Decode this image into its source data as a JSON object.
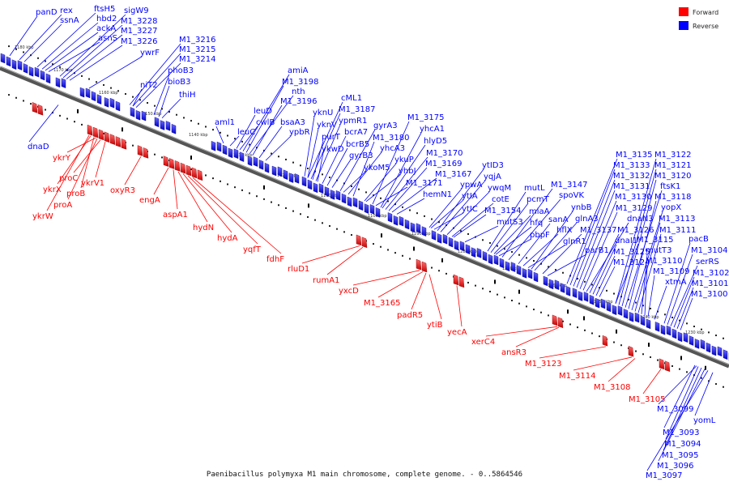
{
  "caption": "Paenibacillus polymyxa M1 main chromosome, complete genome. - 0..5864546",
  "legend": {
    "forward": "Forward",
    "reverse": "Reverse",
    "forward_color": "#ff0000",
    "reverse_color": "#0000ff"
  },
  "colors": {
    "forward": "#ff0000",
    "reverse": "#0000ff",
    "backbone": "#555555"
  },
  "tick_labels": [
    "1180 kbp",
    "1170 kbp",
    "1160 kbp",
    "1150 kbp",
    "1140 kbp",
    "1130 kbp",
    "1120 kbp",
    "1110 kbp",
    "1100 kbp",
    "1290 kbp",
    "1280 kbp",
    "1270 kbp",
    "1260 kbp",
    "1250 kbp",
    "1240 kbp",
    "1230 kbp"
  ],
  "reverse_labels": [
    "panD",
    "rex",
    "ssnA",
    "ftsH5",
    "hbd2",
    "ackA",
    "asnS",
    "sigW9",
    "M1_3228",
    "M1_3227",
    "M1_3226",
    "ywrF",
    "dnaD",
    "M1_3216",
    "M1_3215",
    "M1_3214",
    "niT2",
    "phoB3",
    "bioB3",
    "thiH",
    "amiA",
    "M1_3198",
    "nth",
    "M1_3196",
    "aml1",
    "leuD",
    "cwlB",
    "leuC",
    "bsaA3",
    "ypbR",
    "cML1",
    "M1_3187",
    "yknU",
    "ypmR1",
    "yknV",
    "purT",
    "bcrA7",
    "ykwD",
    "bcrB5",
    "gyrA3",
    "gyrB3",
    "ykoM5",
    "yhcA3",
    "yhcA1",
    "M1_3175",
    "hlyD5",
    "M1_3180",
    "ykuP",
    "yhbJ",
    "M1_3170",
    "M1_3169",
    "M1_3167",
    "M1_3171",
    "hemN1",
    "ytID3",
    "yqjA",
    "ypwA",
    "ywqM",
    "cotE",
    "ytIA",
    "ytIC",
    "M1_3154",
    "mutS3",
    "mutL",
    "M1_3147",
    "pcmT",
    "spoVK",
    "miaA",
    "hfq",
    "sanA",
    "ynbB",
    "pbpF",
    "glnA3",
    "hflX",
    "glnR1",
    "M1_3137",
    "parB1",
    "M1_3135",
    "M1_3133",
    "M1_3132",
    "M1_3131",
    "M1_3130",
    "M1_3129",
    "dnaN3",
    "M1_3126",
    "dnaI1",
    "M1_3125",
    "M1_3124",
    "M1_3122",
    "M1_3121",
    "M1_3120",
    "ftsK1",
    "M1_3118",
    "yopX",
    "M1_3113",
    "M1_3111",
    "M1_3115",
    "mutT3",
    "M1_3110",
    "M1_3109",
    "pacB",
    "M1_3104",
    "serRS",
    "M1_3102",
    "M1_3101",
    "xtmA",
    "M1_3100",
    "M1_3099",
    "yomL",
    "M1_3093",
    "M1_3094",
    "M1_3095",
    "M1_3096",
    "M1_3097"
  ],
  "forward_labels": [
    "ykrY",
    "proC",
    "ykrX",
    "ykrV1",
    "proB",
    "proA",
    "ykrW",
    "oxyR3",
    "engA",
    "aspA1",
    "hydN",
    "hydA",
    "yqfT",
    "fdhF",
    "rluD1",
    "rumA1",
    "yxcD",
    "M1_3165",
    "padR5",
    "ytiB",
    "yecA",
    "xerC4",
    "ansR3",
    "M1_3123",
    "M1_3114",
    "M1_3108",
    "M1_3105"
  ]
}
